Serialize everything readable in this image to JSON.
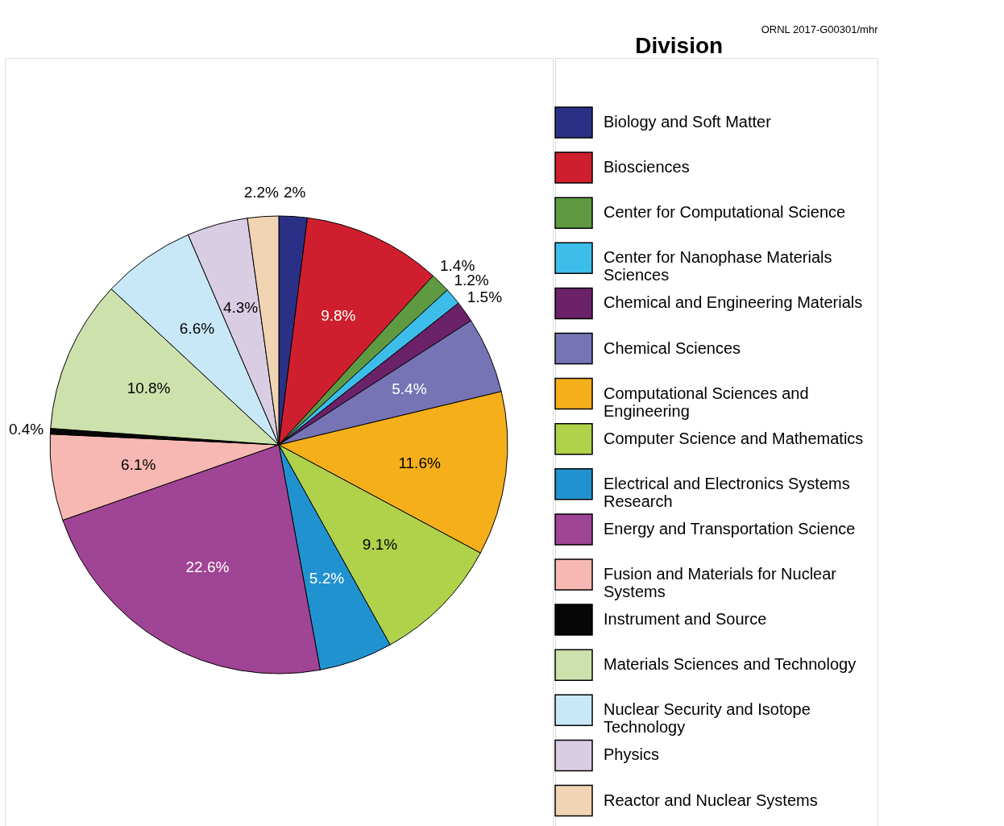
{
  "chart_data": {
    "type": "pie",
    "legend_title": "Division",
    "legend": "right",
    "annotations": [
      "ORNL 2017-G00301/mhr"
    ],
    "categories": [
      "Biology and Soft Matter",
      "Biosciences",
      "Center for Computational Science",
      "Center for Nanophase Materials Sciences",
      "Chemical and Engineering Materials",
      "Chemical Sciences",
      "Computational Sciences and Engineering",
      "Computer Science and Mathematics",
      "Electrical and Electronics Systems Research",
      "Energy and Transportation Science",
      "Fusion and Materials for Nuclear Systems",
      "Instrument and Source",
      "Materials Sciences and Technology",
      "Nuclear Security and Isotope Technology",
      "Physics",
      "Reactor and Nuclear Systems"
    ],
    "values": [
      2,
      9.8,
      1.4,
      1.2,
      1.5,
      5.4,
      11.6,
      9.1,
      5.2,
      22.6,
      6.1,
      0.4,
      10.8,
      6.6,
      4.3,
      2.2
    ],
    "value_labels": [
      "2%",
      "9.8%",
      "1.4%",
      "1.2%",
      "1.5%",
      "5.4%",
      "11.6%",
      "9.1%",
      "5.2%",
      "22.6%",
      "6.1%",
      "0.4%",
      "10.8%",
      "6.6%",
      "4.3%",
      "2.2%"
    ],
    "colors": [
      "#2b3087",
      "#cf1f2e",
      "#5f9a42",
      "#3dbdea",
      "#6b2268",
      "#7674b5",
      "#f5af1b",
      "#b0d14a",
      "#2192d0",
      "#a04495",
      "#f7b8b3",
      "#060606",
      "#cde1ad",
      "#c8e8f7",
      "#d9cde3",
      "#f1d4b4"
    ]
  }
}
